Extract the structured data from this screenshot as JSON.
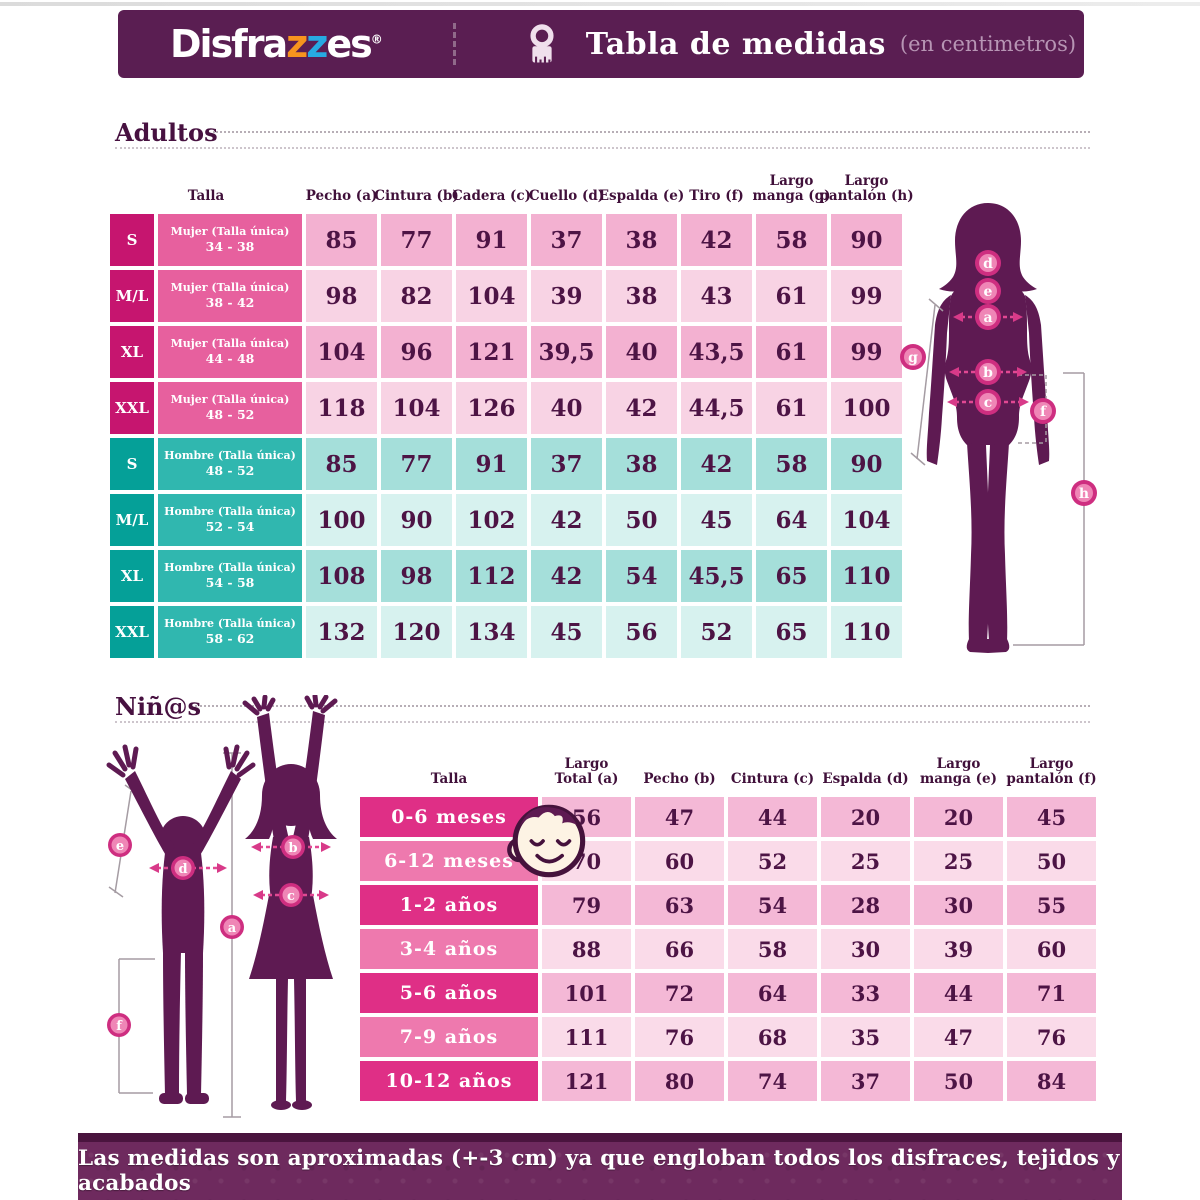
{
  "header": {
    "logo_part1": "Disfra",
    "logo_z1": "z",
    "logo_z2": "z",
    "logo_part2": "es",
    "logo_reg": "®",
    "title": "Tabla de medidas",
    "subtitle": "(en centimetros)"
  },
  "icons": {
    "header_icon": "measuring-tape-icon",
    "kids_row_icon": "baby-face-icon"
  },
  "adults": {
    "section_title": "Adultos",
    "columns": [
      [
        "Talla"
      ],
      [
        "Pecho (a)"
      ],
      [
        "Cintura (b)"
      ],
      [
        "Cadera (c)"
      ],
      [
        "Cuello (d)"
      ],
      [
        "Espalda (e)"
      ],
      [
        "Tiro (f)"
      ],
      [
        "Largo",
        "manga (g)"
      ],
      [
        "Largo",
        "pantalón (h)"
      ]
    ],
    "rows": [
      {
        "size": "S",
        "label": "Mujer (Talla única)",
        "range": "34 - 38",
        "theme": "pink",
        "shade": "dark",
        "values": [
          "85",
          "77",
          "91",
          "37",
          "38",
          "42",
          "58",
          "90"
        ]
      },
      {
        "size": "M/L",
        "label": "Mujer (Talla única)",
        "range": "38 - 42",
        "theme": "pink",
        "shade": "light",
        "values": [
          "98",
          "82",
          "104",
          "39",
          "38",
          "43",
          "61",
          "99"
        ]
      },
      {
        "size": "XL",
        "label": "Mujer (Talla única)",
        "range": "44 - 48",
        "theme": "pink",
        "shade": "dark",
        "values": [
          "104",
          "96",
          "121",
          "39,5",
          "40",
          "43,5",
          "61",
          "99"
        ]
      },
      {
        "size": "XXL",
        "label": "Mujer (Talla única)",
        "range": "48 - 52",
        "theme": "pink",
        "shade": "light",
        "values": [
          "118",
          "104",
          "126",
          "40",
          "42",
          "44,5",
          "61",
          "100"
        ]
      },
      {
        "size": "S",
        "label": "Hombre (Talla única)",
        "range": "48 - 52",
        "theme": "teal",
        "shade": "dark",
        "values": [
          "85",
          "77",
          "91",
          "37",
          "38",
          "42",
          "58",
          "90"
        ]
      },
      {
        "size": "M/L",
        "label": "Hombre (Talla única)",
        "range": "52 - 54",
        "theme": "teal",
        "shade": "light",
        "values": [
          "100",
          "90",
          "102",
          "42",
          "50",
          "45",
          "64",
          "104"
        ]
      },
      {
        "size": "XL",
        "label": "Hombre (Talla única)",
        "range": "54 - 58",
        "theme": "teal",
        "shade": "dark",
        "values": [
          "108",
          "98",
          "112",
          "42",
          "54",
          "45,5",
          "65",
          "110"
        ]
      },
      {
        "size": "XXL",
        "label": "Hombre (Talla única)",
        "range": "58 - 62",
        "theme": "teal",
        "shade": "light",
        "values": [
          "132",
          "120",
          "134",
          "45",
          "56",
          "52",
          "65",
          "110"
        ]
      }
    ]
  },
  "kids": {
    "section_title": "Niñ@s",
    "columns": [
      [
        "Talla"
      ],
      [
        "Largo",
        "Total (a)"
      ],
      [
        "Pecho (b)"
      ],
      [
        "Cintura (c)"
      ],
      [
        "Espalda (d)"
      ],
      [
        "Largo",
        "manga (e)"
      ],
      [
        "Largo",
        "pantalón (f)"
      ]
    ],
    "rows": [
      {
        "label": "0-6 meses",
        "shade": "dark",
        "values": [
          "56",
          "47",
          "44",
          "20",
          "20",
          "45"
        ]
      },
      {
        "label": "6-12 meses",
        "shade": "light",
        "values": [
          "70",
          "60",
          "52",
          "25",
          "25",
          "50"
        ]
      },
      {
        "label": "1-2 años",
        "shade": "dark",
        "values": [
          "79",
          "63",
          "54",
          "28",
          "30",
          "55"
        ]
      },
      {
        "label": "3-4 años",
        "shade": "light",
        "values": [
          "88",
          "66",
          "58",
          "30",
          "39",
          "60"
        ]
      },
      {
        "label": "5-6 años",
        "shade": "dark",
        "values": [
          "101",
          "72",
          "64",
          "33",
          "44",
          "71"
        ]
      },
      {
        "label": "7-9 años",
        "shade": "light",
        "values": [
          "111",
          "76",
          "68",
          "35",
          "47",
          "76"
        ]
      },
      {
        "label": "10-12 años",
        "shade": "dark",
        "values": [
          "121",
          "80",
          "74",
          "37",
          "50",
          "84"
        ]
      }
    ]
  },
  "figures": {
    "adult_labels": [
      "d",
      "e",
      "a",
      "b",
      "c",
      "g",
      "f",
      "h"
    ],
    "kids_labels": [
      "e",
      "d",
      "b",
      "c",
      "a",
      "f"
    ]
  },
  "footer": {
    "text": "Las medidas son aproximadas (+-3 cm) ya que engloban todos los disfraces, tejidos y acabados"
  },
  "colors": {
    "brand_purple": "#5a1e52",
    "pink_size": "#c6156f",
    "pink_label": "#e7609e",
    "pink_cell_dark": "#f3b1d1",
    "pink_cell_light": "#f8d3e4",
    "teal_size": "#05a098",
    "teal_label": "#30b7af",
    "teal_cell_dark": "#a5dfda",
    "teal_cell_light": "#d7f2ef",
    "kids_label_dark": "#df2f86",
    "kids_label_light": "#ee79ae",
    "value_text": "#4d1445",
    "silhouette": "#5e1a52",
    "marker_outer": "#ce2e80",
    "marker_inner": "#ef86b6",
    "logo_z1_color": "#f7941e",
    "logo_z2_color": "#27aae1"
  }
}
